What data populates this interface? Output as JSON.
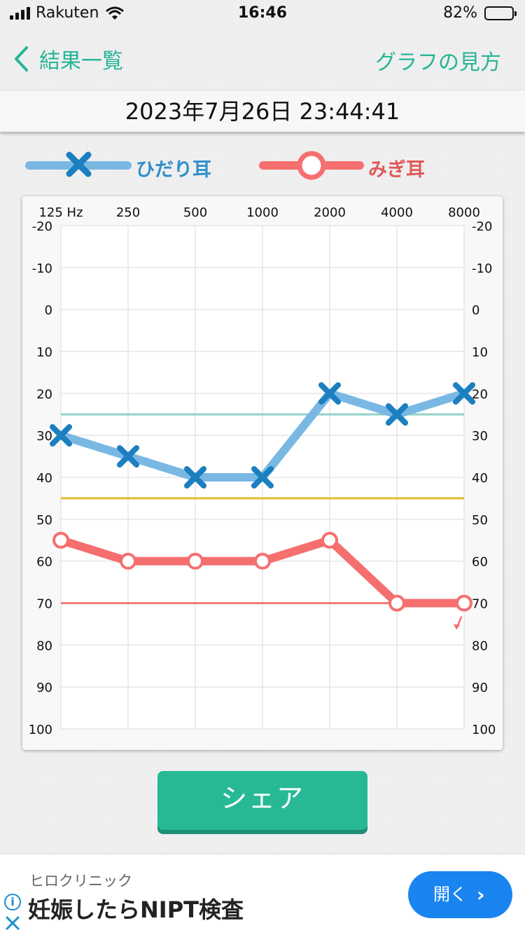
{
  "status_bar": {
    "carrier": "Rakuten",
    "time": "16:46",
    "battery_percent": "82%",
    "battery_level": 0.82
  },
  "nav": {
    "back_label": "結果一覧",
    "help_label": "グラフの見方",
    "accent_color": "#26b596"
  },
  "date_label": "2023年7月26日 23:44:41",
  "legend": {
    "left_label": "ひだり耳",
    "right_label": "みぎ耳",
    "left_color": "#7ab8e4",
    "left_marker_color": "#1b7fc0",
    "right_color": "#f56f6f"
  },
  "chart_data": {
    "type": "line",
    "x_labels": [
      "125 Hz",
      "250",
      "500",
      "1000",
      "2000",
      "4000",
      "8000"
    ],
    "y_ticks": [
      -20,
      -10,
      0,
      10,
      20,
      30,
      40,
      50,
      60,
      70,
      80,
      90,
      100
    ],
    "ylim": [
      -20,
      100
    ],
    "y_inverted": true,
    "series": [
      {
        "name": "ひだり耳",
        "marker": "x",
        "color": "#7ab8e4",
        "marker_color": "#1b7fc0",
        "values": [
          30,
          35,
          40,
          40,
          20,
          25,
          20
        ]
      },
      {
        "name": "みぎ耳",
        "marker": "o",
        "color": "#f56f6f",
        "values": [
          55,
          60,
          60,
          60,
          55,
          70,
          70
        ]
      }
    ],
    "reference_lines": [
      {
        "value": 25,
        "color": "#92d2c6"
      },
      {
        "value": 45,
        "color": "#e2bd2a"
      },
      {
        "value": 70,
        "color": "#f27b7b"
      }
    ],
    "grid": true
  },
  "share_label": "シェア",
  "ad": {
    "advertiser": "ヒロクリニック",
    "headline": "妊娠したらNIPT検査",
    "button_label": "開く",
    "button_color": "#1a84f0"
  }
}
